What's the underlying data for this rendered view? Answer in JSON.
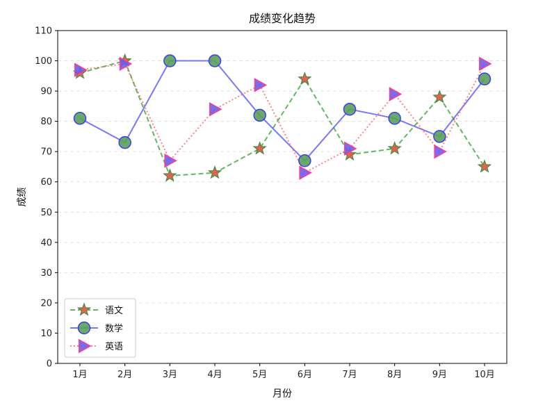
{
  "chart_data": {
    "type": "line",
    "title": "成绩变化趋势",
    "xlabel": "月份",
    "ylabel": "成绩",
    "categories": [
      "1月",
      "2月",
      "3月",
      "4月",
      "5月",
      "6月",
      "7月",
      "8月",
      "9月",
      "10月"
    ],
    "ylim": [
      0,
      110
    ],
    "yticks": [
      0,
      10,
      20,
      30,
      40,
      50,
      60,
      70,
      80,
      90,
      100,
      110
    ],
    "grid": "y-dashed",
    "legend_position": "bottom-left",
    "series": [
      {
        "name": "语文",
        "values": [
          96,
          100,
          62,
          63,
          71,
          94,
          69,
          71,
          88,
          65
        ],
        "line_color": "#2ca02c",
        "line_style": "dashed",
        "marker": "star",
        "marker_fill": "#e8594a",
        "marker_edge": "#3f8f3f"
      },
      {
        "name": "数学",
        "values": [
          81,
          73,
          100,
          100,
          82,
          67,
          84,
          81,
          75,
          94
        ],
        "line_color": "#4a4aff",
        "line_style": "solid",
        "marker": "circle",
        "marker_fill": "#5aa05a",
        "marker_edge": "#3c3cf0"
      },
      {
        "name": "英语",
        "values": [
          97,
          99,
          67,
          84,
          92,
          63,
          71,
          89,
          70,
          99
        ],
        "line_color": "#ff5a5a",
        "line_style": "dotted",
        "marker": "triangle-right",
        "marker_fill": "#6a5cf0",
        "marker_edge": "#ff3c8c"
      }
    ]
  }
}
